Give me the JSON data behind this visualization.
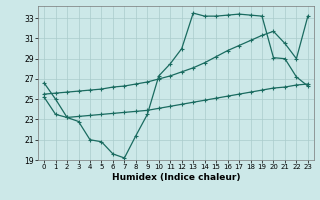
{
  "xlabel": "Humidex (Indice chaleur)",
  "bg_color": "#cce8e8",
  "grid_color": "#aacccc",
  "line_color": "#1a6b60",
  "xlim": [
    -0.5,
    23.5
  ],
  "ylim": [
    19,
    34.2
  ],
  "yticks": [
    19,
    21,
    23,
    25,
    27,
    29,
    31,
    33
  ],
  "xticks": [
    0,
    1,
    2,
    3,
    4,
    5,
    6,
    7,
    8,
    9,
    10,
    11,
    12,
    13,
    14,
    15,
    16,
    17,
    18,
    19,
    20,
    21,
    22,
    23
  ],
  "line1_x": [
    0,
    1,
    2,
    3,
    4,
    5,
    6,
    7,
    8,
    9,
    10,
    11,
    12,
    13,
    14,
    15,
    16,
    17,
    18,
    19,
    20,
    21,
    22,
    23
  ],
  "line1_y": [
    26.6,
    25.0,
    23.2,
    22.8,
    21.0,
    20.8,
    19.6,
    19.2,
    21.4,
    23.5,
    27.3,
    28.5,
    30.0,
    33.5,
    33.2,
    33.2,
    33.3,
    33.4,
    33.3,
    33.2,
    29.1,
    29.0,
    27.2,
    26.3
  ],
  "line2_x": [
    0,
    1,
    2,
    3,
    4,
    5,
    6,
    7,
    8,
    9,
    10,
    11,
    12,
    13,
    14,
    15,
    16,
    17,
    18,
    19,
    20,
    21,
    22,
    23
  ],
  "line2_y": [
    25.5,
    25.6,
    25.7,
    25.8,
    25.9,
    26.0,
    26.2,
    26.3,
    26.5,
    26.7,
    27.0,
    27.3,
    27.7,
    28.1,
    28.6,
    29.2,
    29.8,
    30.3,
    30.8,
    31.3,
    31.7,
    30.5,
    29.0,
    33.2
  ],
  "line3_x": [
    0,
    1,
    2,
    3,
    4,
    5,
    6,
    7,
    8,
    9,
    10,
    11,
    12,
    13,
    14,
    15,
    16,
    17,
    18,
    19,
    20,
    21,
    22,
    23
  ],
  "line3_y": [
    25.2,
    23.5,
    23.2,
    23.3,
    23.4,
    23.5,
    23.6,
    23.7,
    23.8,
    23.9,
    24.1,
    24.3,
    24.5,
    24.7,
    24.9,
    25.1,
    25.3,
    25.5,
    25.7,
    25.9,
    26.1,
    26.2,
    26.4,
    26.5
  ]
}
